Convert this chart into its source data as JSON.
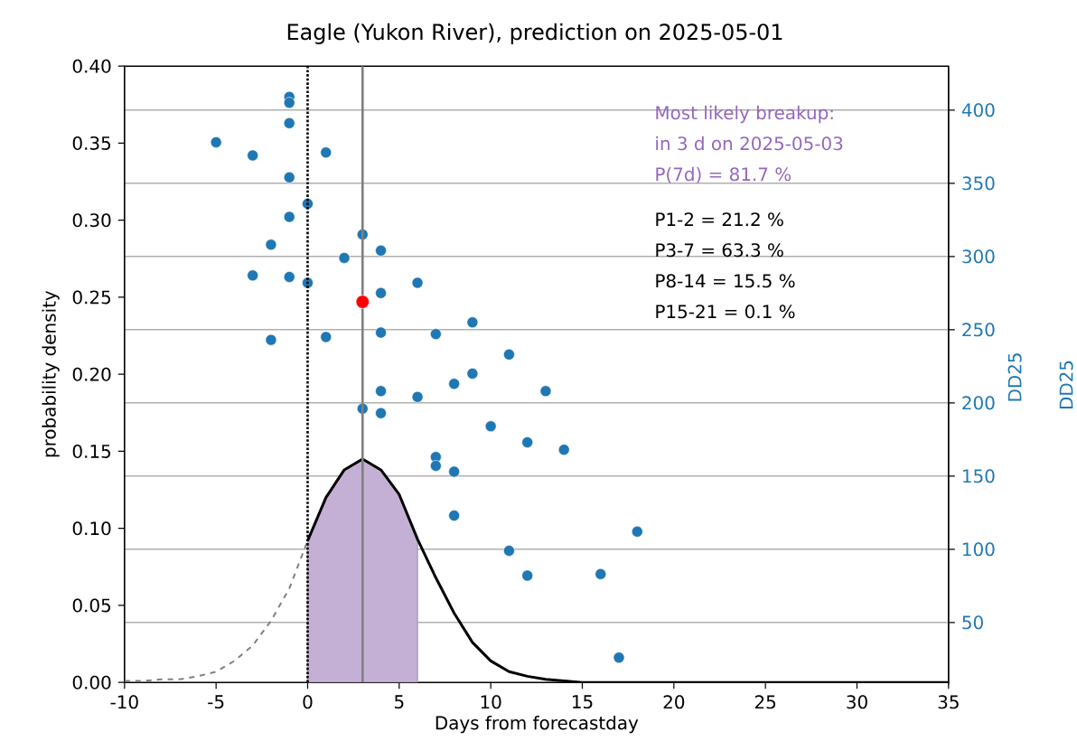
{
  "chart_data": {
    "type": "line",
    "title": "Eagle (Yukon River), prediction on 2025-05-01",
    "xlabel": "Days from forecastday",
    "ylabel": "probability density",
    "y2label": "DD25",
    "xlim": [
      -10,
      35
    ],
    "xticks": [
      -10,
      -5,
      0,
      5,
      10,
      15,
      20,
      25,
      30,
      35
    ],
    "ylim": [
      0,
      0.4
    ],
    "yticks": [
      {
        "value": 0,
        "label": "0.00"
      },
      {
        "value": 0.05,
        "label": "0.05"
      },
      {
        "value": 0.1,
        "label": "0.10"
      },
      {
        "value": 0.15,
        "label": "0.15"
      },
      {
        "value": 0.2,
        "label": "0.20"
      },
      {
        "value": 0.25,
        "label": "0.25"
      },
      {
        "value": 0.3,
        "label": "0.30"
      },
      {
        "value": 0.35,
        "label": "0.35"
      },
      {
        "value": 0.4,
        "label": "0.40"
      }
    ],
    "y2lim": [
      7,
      428
    ],
    "y2ticks": [
      50,
      100,
      150,
      200,
      250,
      300,
      350,
      400
    ],
    "grid": "y2",
    "ref_lines": [
      {
        "axis": "x",
        "value": 0,
        "color": "#000000",
        "line_style": "dotted"
      },
      {
        "axis": "x",
        "value": 3,
        "color": "#808080",
        "line_style": "solid"
      }
    ],
    "series": [
      {
        "type": "area",
        "color": "#c5b0d5",
        "x": [
          0,
          1,
          2,
          3,
          4,
          5,
          6
        ],
        "values": [
          0.092,
          0.12,
          0.138,
          0.145,
          0.138,
          0.122,
          0.093
        ]
      },
      {
        "color": "#808080",
        "line_style": "dashed",
        "x": [
          -10,
          -9,
          -8,
          -7,
          -6,
          -5,
          -4,
          -3,
          -2,
          -1,
          0
        ],
        "values": [
          0.001,
          0.001,
          0.002,
          0.002,
          0.004,
          0.007,
          0.014,
          0.024,
          0.04,
          0.061,
          0.092
        ]
      },
      {
        "color": "#000000",
        "line_style": "solid",
        "x": [
          0,
          1,
          2,
          3,
          4,
          5,
          6,
          7,
          8,
          9,
          10,
          11,
          12,
          13,
          14,
          15,
          20,
          25,
          30,
          35
        ],
        "values": [
          0.092,
          0.12,
          0.138,
          0.145,
          0.138,
          0.122,
          0.093,
          0.068,
          0.045,
          0.026,
          0.014,
          0.007,
          0.004,
          0.002,
          0.001,
          0,
          0,
          0,
          0,
          0
        ]
      },
      {
        "type": "scatter",
        "axis": "y2",
        "color": "#1f77b4",
        "x": [
          -5,
          -3,
          -1,
          -1,
          -1,
          1,
          -1,
          0,
          -1,
          -2,
          3,
          4,
          2,
          -3,
          -1,
          0,
          6,
          4,
          4,
          -2,
          1,
          7,
          9,
          11,
          9,
          8,
          4,
          6,
          13,
          3,
          4,
          10,
          12,
          14,
          7,
          7,
          8,
          8,
          18,
          11,
          12,
          16,
          17
        ],
        "values": [
          378,
          369,
          409,
          405,
          391,
          371,
          354,
          336,
          327,
          308,
          315,
          304,
          299,
          287,
          286,
          282,
          282,
          275,
          248,
          243,
          245,
          247,
          255,
          233,
          220,
          213,
          208,
          204,
          208,
          196,
          193,
          184,
          173,
          168,
          163,
          157,
          153,
          123,
          112,
          99,
          82,
          83,
          26
        ]
      },
      {
        "type": "scatter",
        "color": "#ff0000",
        "x": [
          3
        ],
        "values": [
          0.247
        ]
      }
    ],
    "annotations": [
      "Most likely breakup:",
      "in 3 d on 2025-05-03",
      "P(7d) = 81.7 %",
      "P1-2 = 21.2 %",
      "P3-7 = 63.3 %",
      "P8-14 = 15.5 %",
      "P15-21 = 0.1 %",
      "DD25"
    ]
  }
}
